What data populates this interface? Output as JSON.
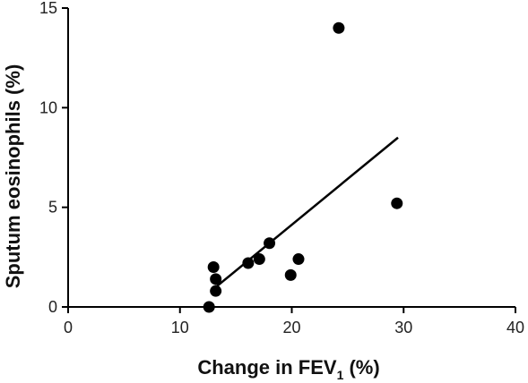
{
  "chart_data": {
    "type": "scatter",
    "title": "",
    "xlabel": {
      "main": "Change in FEV",
      "subscript": "1",
      "suffix": " (%)"
    },
    "ylabel": "Sputum eosinophils (%)",
    "xlim": [
      0,
      40
    ],
    "ylim": [
      0,
      15
    ],
    "xticks": [
      "0",
      "10",
      "20",
      "30",
      "40"
    ],
    "yticks": [
      "0",
      "5",
      "10",
      "15"
    ],
    "grid": false,
    "legend": "none",
    "points": [
      {
        "x": 12.6,
        "y": 0.0
      },
      {
        "x": 13.0,
        "y": 2.0
      },
      {
        "x": 13.2,
        "y": 1.4
      },
      {
        "x": 13.2,
        "y": 0.8
      },
      {
        "x": 16.1,
        "y": 2.2
      },
      {
        "x": 17.1,
        "y": 2.4
      },
      {
        "x": 18.0,
        "y": 3.2
      },
      {
        "x": 19.9,
        "y": 1.6
      },
      {
        "x": 20.6,
        "y": 2.4
      },
      {
        "x": 24.2,
        "y": 14.0
      },
      {
        "x": 29.4,
        "y": 5.2
      }
    ],
    "trendline": {
      "x": [
        13.0,
        29.5
      ],
      "y": [
        0.9,
        8.5
      ]
    },
    "colors": {
      "points": "#000000",
      "line": "#000000",
      "axes": "#000000"
    }
  }
}
